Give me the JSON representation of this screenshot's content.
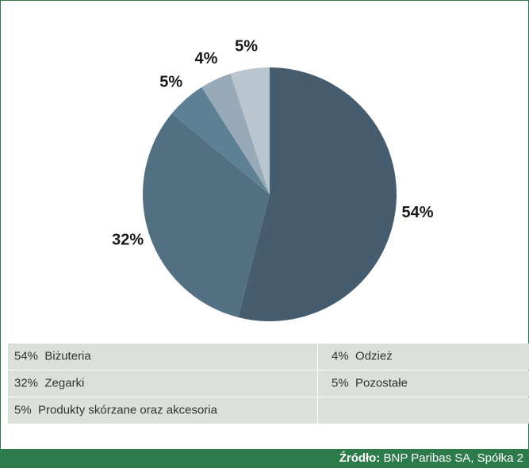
{
  "chart_data": {
    "type": "pie",
    "categories": [
      "Biżuteria",
      "Zegarki",
      "Produkty skórzane oraz akcesoria",
      "Odzież",
      "Pozostałe"
    ],
    "values": [
      54,
      32,
      5,
      4,
      5
    ],
    "value_labels": [
      "54%",
      "32%",
      "5%",
      "4%",
      "5%"
    ],
    "colors": [
      "#465d70",
      "#536f82",
      "#5e8095",
      "#98aab8",
      "#b9c6cf"
    ],
    "source_label": "Źródło:",
    "source": "BNP Paribas SA, Spółka 2"
  }
}
